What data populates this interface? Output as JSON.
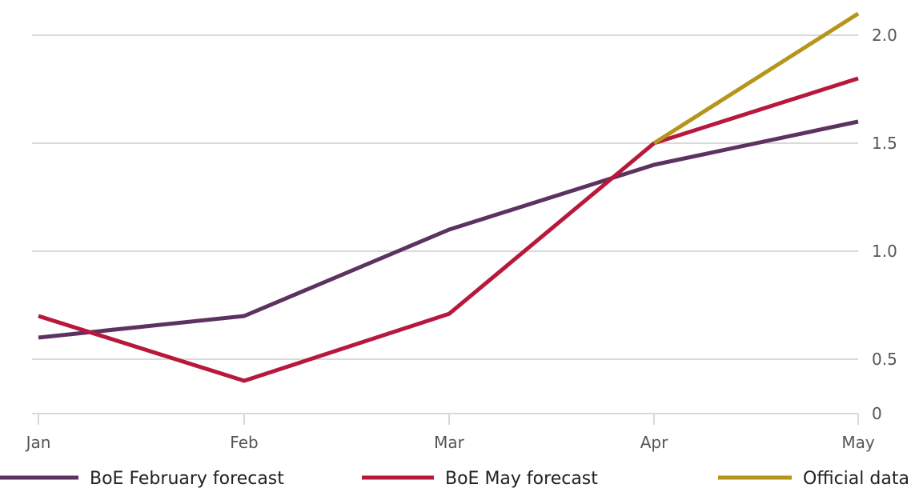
{
  "chart_data": {
    "type": "line",
    "categories": [
      "Jan",
      "Feb",
      "Mar",
      "Apr",
      "May"
    ],
    "y_ticks": [
      "0",
      "0.5",
      "1.0",
      "1.5",
      "2.0"
    ],
    "ylim": [
      0.25,
      2.1
    ],
    "grid": true,
    "legend_position": "bottom",
    "series": [
      {
        "name": "BoE February forecast",
        "color": "#5c3360",
        "x": [
          "Jan",
          "Feb",
          "Mar",
          "Apr",
          "May"
        ],
        "values": [
          0.6,
          0.7,
          1.1,
          1.4,
          1.6
        ]
      },
      {
        "name": "BoE May forecast",
        "color": "#b7183c",
        "x": [
          "Jan",
          "Feb",
          "Mar",
          "Apr",
          "May"
        ],
        "values": [
          0.7,
          0.4,
          0.71,
          1.5,
          1.8
        ]
      },
      {
        "name": "Official data",
        "color": "#b5961b",
        "x": [
          "Apr",
          "May"
        ],
        "values": [
          1.5,
          2.1
        ]
      }
    ]
  }
}
